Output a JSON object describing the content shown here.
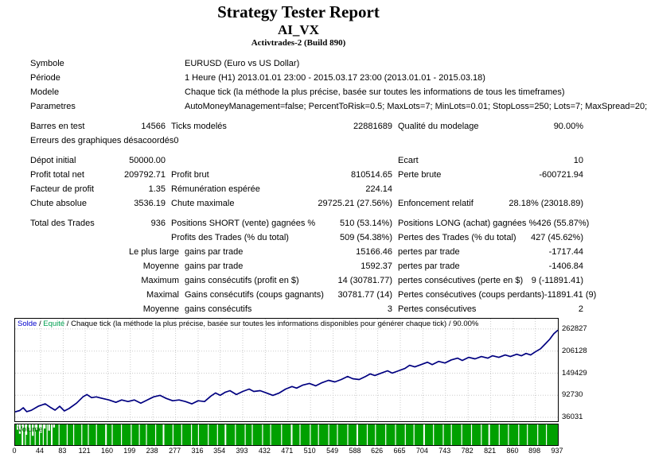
{
  "header": {
    "title": "Strategy Tester Report",
    "ea_name": "AI_VX",
    "server_build": "Activtrades-2 (Build 890)"
  },
  "report": {
    "rows": [
      {
        "type": "wide",
        "label": "Symbole",
        "value": "EURUSD (Euro vs US Dollar)"
      },
      {
        "type": "wide",
        "label": "Période",
        "value": "1 Heure (H1) 2013.01.01 23:00 - 2015.03.17 23:00 (2013.01.01 - 2015.03.18)"
      },
      {
        "type": "wide",
        "label": "Modele",
        "value": "Chaque tick (la méthode la plus précise, basée sur toutes les informations de tous les timeframes)"
      },
      {
        "type": "wide",
        "label": "Parametres",
        "value": "AutoMoneyManagement=false; PercentToRisk=0.5; MaxLots=7; MinLots=0.01; StopLoss=250; Lots=7; MaxSpread=20;"
      },
      {
        "type": "gap"
      },
      {
        "type": "triple",
        "label": "Barres en test",
        "v1": "14566",
        "l2": "Ticks modelés",
        "v2": "22881689",
        "l3": "Qualité du modelage",
        "v3": "90.00%"
      },
      {
        "type": "triple",
        "label": "Erreurs des graphiques désacoordés",
        "v1": "0",
        "l2": "",
        "v2": "",
        "l3": "",
        "v3": ""
      },
      {
        "type": "gap"
      },
      {
        "type": "triple",
        "label": "Dépot initial",
        "v1": "50000.00",
        "l2": "",
        "v2": "",
        "l3": "Ecart",
        "v3": "10"
      },
      {
        "type": "triple",
        "label": "Profit total net",
        "v1": "209792.71",
        "l2": "Profit brut",
        "v2": "810514.65",
        "l3": "Perte brute",
        "v3": "-600721.94"
      },
      {
        "type": "triple",
        "label": "Facteur de profit",
        "v1": "1.35",
        "l2": "Rémunération espérée",
        "v2": "224.14",
        "l3": "",
        "v3": ""
      },
      {
        "type": "triple",
        "label": "Chute absolue",
        "v1": "3536.19",
        "l2": "Chute maximale",
        "v2": "29725.21 (27.56%)",
        "l3": "Enfoncement relatif",
        "v3": "28.18% (23018.89)"
      },
      {
        "type": "gap"
      },
      {
        "type": "triple",
        "label": "Total des Trades",
        "v1": "936",
        "l2": "Positions SHORT (vente) gagnées %",
        "v2": "510 (53.14%)",
        "l3": "Positions LONG (achat) gagnées %",
        "v3": "426 (55.87%)"
      },
      {
        "type": "triple",
        "label": "",
        "v1": "",
        "l2": "Profits des Trades (% du total)",
        "v2": "509 (54.38%)",
        "l3": "Pertes des Trades (% du total)",
        "v3": "427 (45.62%)"
      },
      {
        "type": "tier",
        "label": "Le plus large",
        "l2": "gains par trade",
        "v2": "15166.46",
        "l3": "pertes par trade",
        "v3": "-1717.44"
      },
      {
        "type": "tier",
        "label": "Moyenne",
        "l2": "gains par trade",
        "v2": "1592.37",
        "l3": "pertes par trade",
        "v3": "-1406.84"
      },
      {
        "type": "tier",
        "label": "Maximum",
        "l2": "gains consécutifs (profit en $)",
        "v2": "14 (30781.77)",
        "l3": "pertes consécutives (perte en $)",
        "v3": "9 (-11891.41)"
      },
      {
        "type": "tier",
        "label": "Maximal",
        "l2": "Gains consécutifs (coups gagnants)",
        "v2": "30781.77 (14)",
        "l3": "Pertes consécutives (coups perdants)",
        "v3": "-11891.41 (9)"
      },
      {
        "type": "tier",
        "label": "Moyenne",
        "l2": "gains consécutifs",
        "v2": "3",
        "l3": "Pertes consécutives",
        "v3": "2"
      }
    ]
  },
  "chart_data": {
    "type": "line",
    "legend": {
      "solde": "Solde",
      "equite": "Equité",
      "separator": " / ",
      "description": "Chaque tick (la méthode la plus précise, basée sur toutes les informations disponibles pour générer chaque tick)",
      "quality": "90.00%"
    },
    "x_ticks": [
      0,
      44,
      83,
      121,
      160,
      199,
      238,
      277,
      316,
      354,
      393,
      432,
      471,
      510,
      549,
      588,
      626,
      665,
      704,
      743,
      782,
      821,
      860,
      898,
      937
    ],
    "y_ticks": [
      262827,
      206128,
      149429,
      92730,
      36031
    ],
    "xlim": [
      0,
      937
    ],
    "ylim": [
      25906,
      289156
    ],
    "grid": true,
    "xlabel": "",
    "ylabel": "",
    "series": [
      {
        "name": "Solde",
        "color": "#000080",
        "points": [
          [
            0,
            50000
          ],
          [
            8,
            53500
          ],
          [
            14,
            60500
          ],
          [
            20,
            50500
          ],
          [
            28,
            54000
          ],
          [
            40,
            64500
          ],
          [
            52,
            70500
          ],
          [
            60,
            62500
          ],
          [
            69,
            54500
          ],
          [
            77,
            64500
          ],
          [
            85,
            52500
          ],
          [
            93,
            58500
          ],
          [
            106,
            72500
          ],
          [
            117,
            88500
          ],
          [
            124,
            94500
          ],
          [
            132,
            86500
          ],
          [
            140,
            88500
          ],
          [
            151,
            84500
          ],
          [
            162,
            80500
          ],
          [
            174,
            74500
          ],
          [
            184,
            80500
          ],
          [
            195,
            76500
          ],
          [
            206,
            80500
          ],
          [
            217,
            72500
          ],
          [
            228,
            80500
          ],
          [
            239,
            88500
          ],
          [
            250,
            92500
          ],
          [
            261,
            84500
          ],
          [
            272,
            78500
          ],
          [
            283,
            80500
          ],
          [
            294,
            76500
          ],
          [
            305,
            70500
          ],
          [
            316,
            78500
          ],
          [
            327,
            76500
          ],
          [
            338,
            90500
          ],
          [
            346,
            98500
          ],
          [
            354,
            92500
          ],
          [
            363,
            100500
          ],
          [
            371,
            104500
          ],
          [
            382,
            94500
          ],
          [
            393,
            102500
          ],
          [
            404,
            108500
          ],
          [
            412,
            102500
          ],
          [
            423,
            104500
          ],
          [
            434,
            98500
          ],
          [
            445,
            92500
          ],
          [
            456,
            98500
          ],
          [
            467,
            108500
          ],
          [
            478,
            115000
          ],
          [
            486,
            111000
          ],
          [
            497,
            119000
          ],
          [
            508,
            123000
          ],
          [
            519,
            117000
          ],
          [
            530,
            125000
          ],
          [
            541,
            131000
          ],
          [
            552,
            127000
          ],
          [
            563,
            133000
          ],
          [
            574,
            141000
          ],
          [
            583,
            135000
          ],
          [
            594,
            133000
          ],
          [
            605,
            141000
          ],
          [
            613,
            147500
          ],
          [
            621,
            143500
          ],
          [
            632,
            149500
          ],
          [
            643,
            155500
          ],
          [
            651,
            149500
          ],
          [
            662,
            155500
          ],
          [
            673,
            161500
          ],
          [
            681,
            169500
          ],
          [
            690,
            165500
          ],
          [
            701,
            171500
          ],
          [
            712,
            177500
          ],
          [
            720,
            171500
          ],
          [
            731,
            179500
          ],
          [
            742,
            175500
          ],
          [
            753,
            183500
          ],
          [
            764,
            188000
          ],
          [
            772,
            182000
          ],
          [
            783,
            190000
          ],
          [
            794,
            186000
          ],
          [
            805,
            192000
          ],
          [
            816,
            188000
          ],
          [
            824,
            194000
          ],
          [
            835,
            190000
          ],
          [
            846,
            196000
          ],
          [
            855,
            192000
          ],
          [
            866,
            198000
          ],
          [
            874,
            194000
          ],
          [
            882,
            200000
          ],
          [
            890,
            196000
          ],
          [
            898,
            204000
          ],
          [
            907,
            212000
          ],
          [
            915,
            224000
          ],
          [
            923,
            236500
          ],
          [
            930,
            250500
          ],
          [
            937,
            259793
          ]
        ]
      }
    ]
  },
  "volume": {
    "label": "Volume",
    "bar_color": "#00A000",
    "label_color": "#006000",
    "gap_positions": [
      0.012,
      0.018,
      0.027,
      0.036,
      0.044,
      0.051,
      0.058,
      0.066,
      0.08,
      0.095,
      0.107,
      0.122,
      0.134,
      0.149,
      0.166,
      0.178,
      0.195,
      0.213,
      0.228,
      0.241,
      0.258,
      0.272,
      0.29,
      0.306,
      0.324,
      0.337,
      0.355,
      0.372,
      0.386,
      0.405,
      0.423,
      0.436,
      0.455,
      0.47,
      0.49,
      0.508,
      0.524,
      0.543,
      0.558,
      0.577,
      0.593,
      0.612,
      0.629,
      0.648,
      0.663,
      0.682,
      0.7,
      0.718,
      0.734,
      0.752,
      0.77,
      0.788,
      0.803,
      0.822,
      0.84,
      0.858,
      0.872,
      0.891,
      0.908,
      0.927,
      0.943,
      0.962,
      0.978
    ],
    "short_bars": [
      {
        "x": 0.003,
        "d": 0.25
      },
      {
        "x": 0.007,
        "d": 0.45
      },
      {
        "x": 0.013,
        "d": 0.2
      },
      {
        "x": 0.019,
        "d": 0.5
      },
      {
        "x": 0.025,
        "d": 0.3
      },
      {
        "x": 0.031,
        "d": 0.55
      },
      {
        "x": 0.038,
        "d": 0.25
      },
      {
        "x": 0.046,
        "d": 0.4
      },
      {
        "x": 0.053,
        "d": 0.2
      },
      {
        "x": 0.061,
        "d": 0.3
      },
      {
        "x": 0.07,
        "d": 0.15
      }
    ]
  },
  "colors": {
    "solde_legend": "#0000CC",
    "equite_legend": "#00A050",
    "grid": "#CBCBCB",
    "line": "#000080",
    "border": "#000000"
  }
}
